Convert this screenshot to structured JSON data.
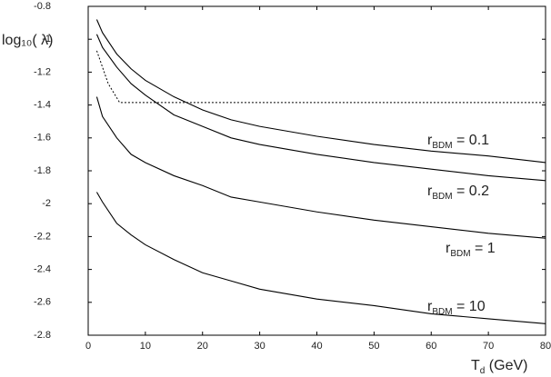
{
  "chart_data": {
    "type": "line",
    "y_label": "log₁₀( λ)",
    "x_label": {
      "base": "T",
      "sub": "d",
      "rest": " (GeV)"
    },
    "xlim": [
      0,
      80
    ],
    "xticks": [
      0,
      10,
      20,
      30,
      40,
      50,
      60,
      70,
      80
    ],
    "ylim": [
      -2.8,
      -0.8
    ],
    "yticks": [
      -2.8,
      -2.6,
      -2.4,
      -2.2,
      -2,
      -1.8,
      -1.6,
      -1.4,
      -1.2,
      -1,
      -0.8
    ],
    "color": "#000000",
    "series": [
      {
        "label": {
          "base": "r",
          "sub": "BDM",
          "rest": " = 0.1"
        },
        "style": "solid",
        "x": [
          1.5,
          2.5,
          5,
          7.5,
          10,
          15,
          20,
          25,
          30,
          40,
          50,
          60,
          70,
          80
        ],
        "values": [
          -0.88,
          -0.96,
          -1.09,
          -1.18,
          -1.25,
          -1.35,
          -1.43,
          -1.49,
          -1.53,
          -1.59,
          -1.64,
          -1.68,
          -1.71,
          -1.75
        ]
      },
      {
        "label": {
          "base": "r",
          "sub": "BDM",
          "rest": " = 0.2"
        },
        "style": "solid",
        "x": [
          1.5,
          2.5,
          5,
          7.5,
          10,
          15,
          20,
          25,
          30,
          40,
          50,
          60,
          70,
          80
        ],
        "values": [
          -0.97,
          -1.05,
          -1.17,
          -1.27,
          -1.34,
          -1.46,
          -1.53,
          -1.6,
          -1.64,
          -1.7,
          -1.75,
          -1.79,
          -1.83,
          -1.86
        ]
      },
      {
        "label": {
          "base": "r",
          "sub": "BDM",
          "rest": " = 1"
        },
        "style": "solid",
        "x": [
          1.5,
          2.5,
          5,
          7.5,
          10,
          15,
          20,
          25,
          30,
          40,
          50,
          60,
          70,
          80
        ],
        "values": [
          -1.35,
          -1.47,
          -1.6,
          -1.7,
          -1.75,
          -1.83,
          -1.89,
          -1.96,
          -1.99,
          -2.05,
          -2.1,
          -2.14,
          -2.18,
          -2.21
        ]
      },
      {
        "label": {
          "base": "r",
          "sub": "BDM",
          "rest": " = 10"
        },
        "style": "solid",
        "x": [
          1.5,
          2.5,
          5,
          7.5,
          10,
          15,
          20,
          25,
          30,
          40,
          50,
          60,
          70,
          80
        ],
        "values": [
          -1.93,
          -1.99,
          -2.12,
          -2.19,
          -2.25,
          -2.34,
          -2.42,
          -2.47,
          -2.52,
          -2.58,
          -2.62,
          -2.67,
          -2.7,
          -2.73
        ]
      },
      {
        "style": "dotted",
        "x": [
          1.5,
          3.5,
          5.5,
          80
        ],
        "values": [
          -1.07,
          -1.27,
          -1.385,
          -1.385
        ]
      }
    ]
  }
}
